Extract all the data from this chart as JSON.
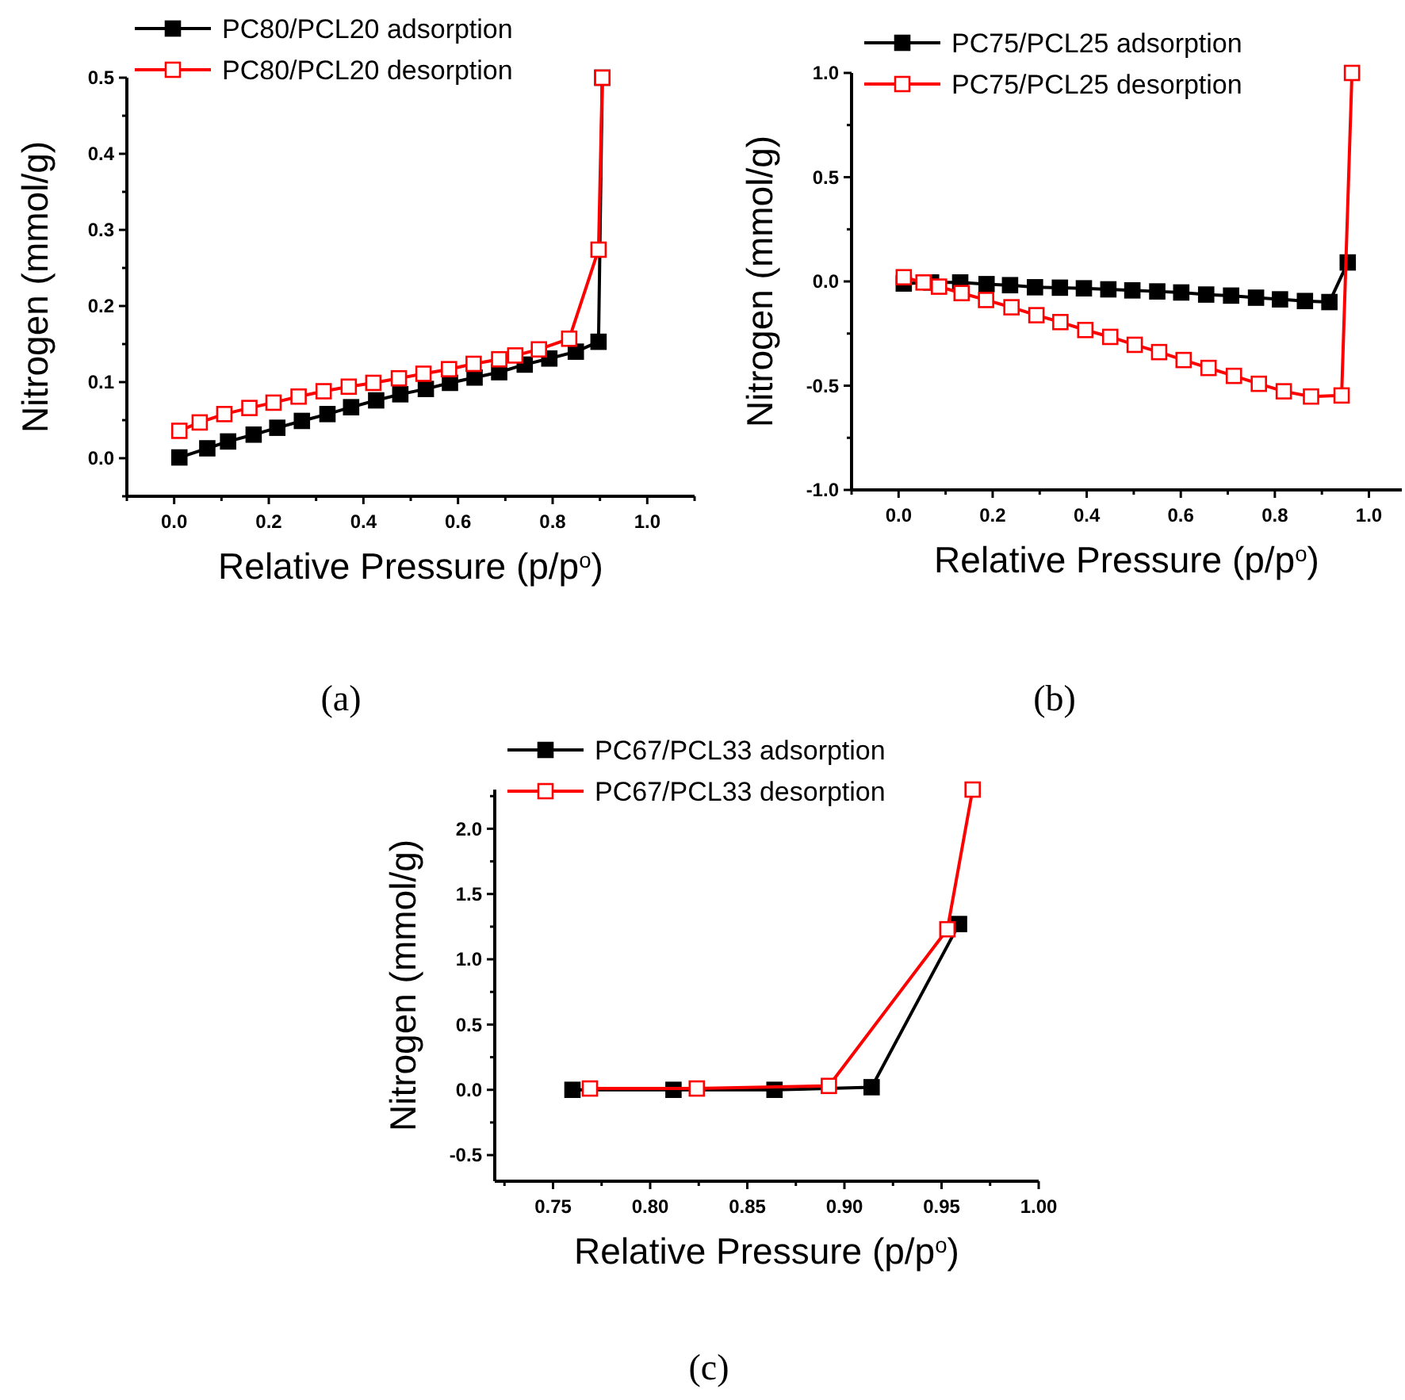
{
  "chart_data": [
    {
      "type": "line",
      "xlabel": "Relative Pressure (p/p$^{o}$)",
      "ylabel": "Nitrogen (mmol/g)",
      "annotations": [
        "(a)"
      ],
      "legend": "top",
      "marker": "square",
      "xlim": [
        -0.1,
        1.1
      ],
      "ylim": [
        -0.05,
        0.5
      ],
      "xticks": [
        {
          "value": -0.1,
          "label": null
        },
        {
          "value": 0,
          "label": "0.0"
        },
        {
          "value": 0.1,
          "label": null
        },
        0.2,
        {
          "value": 0.3,
          "label": null
        },
        0.4,
        {
          "value": 0.5,
          "label": null
        },
        0.6,
        {
          "value": 0.7,
          "label": null
        },
        0.8,
        {
          "value": 0.9,
          "label": null
        },
        {
          "value": 1,
          "label": "1.0"
        },
        {
          "value": 1.1,
          "label": null
        }
      ],
      "yticks": [
        {
          "value": -0.05,
          "label": null
        },
        {
          "value": 0,
          "label": "0.0"
        },
        {
          "value": 0.05,
          "label": null
        },
        0.1,
        {
          "value": 0.15,
          "label": null
        },
        0.2,
        {
          "value": 0.25,
          "label": null
        },
        0.3,
        {
          "value": 0.35,
          "label": null
        },
        0.4,
        {
          "value": 0.45,
          "label": null
        },
        0.5
      ],
      "series": [
        {
          "name": "PC80/PCL20 adsorption",
          "color": "#000000",
          "x": [
            0.011,
            0.07,
            0.114,
            0.168,
            0.218,
            0.27,
            0.324,
            0.374,
            0.427,
            0.478,
            0.532,
            0.583,
            0.635,
            0.687,
            0.741,
            0.793,
            0.849,
            0.897,
            0.905
          ],
          "values": [
            0.001,
            0.013,
            0.022,
            0.031,
            0.04,
            0.049,
            0.058,
            0.067,
            0.076,
            0.084,
            0.091,
            0.099,
            0.106,
            0.113,
            0.123,
            0.131,
            0.14,
            0.153,
            0.5
          ]
        },
        {
          "name": "PC80/PCL20 desorption",
          "color": "#ff0000",
          "x": [
            0.011,
            0.054,
            0.106,
            0.159,
            0.21,
            0.263,
            0.316,
            0.369,
            0.421,
            0.475,
            0.527,
            0.581,
            0.633,
            0.687,
            0.721,
            0.771,
            0.835,
            0.897,
            0.905
          ],
          "values": [
            0.036,
            0.047,
            0.058,
            0.066,
            0.073,
            0.081,
            0.088,
            0.094,
            0.099,
            0.105,
            0.111,
            0.117,
            0.124,
            0.13,
            0.135,
            0.143,
            0.157,
            0.274,
            0.5
          ]
        }
      ]
    },
    {
      "type": "line",
      "xlabel": "Relative Pressure (p/p$^{o}$)",
      "ylabel": "Nitrogen (mmol/g)",
      "annotations": [
        "(b)"
      ],
      "legend": "top",
      "marker": "square",
      "xlim": [
        -0.1,
        1.07
      ],
      "ylim": [
        -1.0,
        1.0
      ],
      "xticks": [
        {
          "value": -0.1,
          "label": null
        },
        {
          "value": 0,
          "label": "0.0"
        },
        {
          "value": 0.1,
          "label": null
        },
        0.2,
        {
          "value": 0.3,
          "label": null
        },
        0.4,
        {
          "value": 0.5,
          "label": null
        },
        0.6,
        {
          "value": 0.7,
          "label": null
        },
        0.8,
        {
          "value": 0.9,
          "label": null
        },
        {
          "value": 1,
          "label": "1.0"
        }
      ],
      "yticks": [
        {
          "value": -1,
          "label": "-1.0"
        },
        {
          "value": -0.75,
          "label": null
        },
        -0.5,
        {
          "value": -0.25,
          "label": null
        },
        {
          "value": 0,
          "label": "0.0"
        },
        {
          "value": 0.25,
          "label": null
        },
        0.5,
        {
          "value": 0.75,
          "label": null
        },
        {
          "value": 1,
          "label": "1.0"
        }
      ],
      "series": [
        {
          "name": "PC75/PCL25 adsorption",
          "color": "#000000",
          "x": [
            0.011,
            0.069,
            0.131,
            0.187,
            0.237,
            0.29,
            0.343,
            0.394,
            0.446,
            0.497,
            0.55,
            0.601,
            0.654,
            0.707,
            0.76,
            0.811,
            0.864,
            0.916,
            0.955
          ],
          "values": [
            -0.01,
            -0.005,
            -0.005,
            -0.013,
            -0.018,
            -0.028,
            -0.03,
            -0.033,
            -0.038,
            -0.043,
            -0.048,
            -0.053,
            -0.063,
            -0.068,
            -0.078,
            -0.086,
            -0.094,
            -0.099,
            0.091
          ]
        },
        {
          "name": "PC75/PCL25 desorption",
          "color": "#ff0000",
          "x": [
            0.011,
            0.053,
            0.086,
            0.134,
            0.186,
            0.24,
            0.293,
            0.344,
            0.397,
            0.45,
            0.502,
            0.554,
            0.606,
            0.659,
            0.713,
            0.766,
            0.819,
            0.877,
            0.942,
            0.964
          ],
          "values": [
            0.02,
            -0.005,
            -0.025,
            -0.056,
            -0.089,
            -0.124,
            -0.162,
            -0.195,
            -0.233,
            -0.266,
            -0.304,
            -0.339,
            -0.377,
            -0.415,
            -0.453,
            -0.491,
            -0.527,
            -0.552,
            -0.547,
            1.0
          ]
        }
      ]
    },
    {
      "type": "line",
      "xlabel": "Relative Pressure (p/p$^{o}$)",
      "ylabel": "Nitrogen (mmol/g)",
      "annotations": [
        "(c)"
      ],
      "legend": "top",
      "marker": "square",
      "xlim": [
        0.72,
        1.0
      ],
      "ylim": [
        -0.7,
        2.3
      ],
      "xticks": [
        {
          "value": 0.725,
          "label": null
        },
        {
          "value": 0.75,
          "label": "0.75"
        },
        {
          "value": 0.775,
          "label": null
        },
        {
          "value": 0.8,
          "label": "0.80"
        },
        {
          "value": 0.825,
          "label": null
        },
        {
          "value": 0.85,
          "label": "0.85"
        },
        {
          "value": 0.875,
          "label": null
        },
        {
          "value": 0.9,
          "label": "0.90"
        },
        {
          "value": 0.925,
          "label": null
        },
        {
          "value": 0.95,
          "label": "0.95"
        },
        {
          "value": 0.975,
          "label": null
        },
        {
          "value": 1.0,
          "label": "1.00"
        }
      ],
      "yticks": [
        -0.5,
        {
          "value": -0.25,
          "label": null
        },
        {
          "value": 0,
          "label": "0.0"
        },
        {
          "value": 0.25,
          "label": null
        },
        0.5,
        {
          "value": 0.75,
          "label": null
        },
        {
          "value": 1,
          "label": "1.0"
        },
        {
          "value": 1.25,
          "label": null
        },
        1.5,
        {
          "value": 1.75,
          "label": null
        },
        {
          "value": 2,
          "label": "2.0"
        },
        {
          "value": 2.25,
          "label": null
        }
      ],
      "series": [
        {
          "name": "PC67/PCL33 adsorption",
          "color": "#000000",
          "x": [
            0.76,
            0.812,
            0.864,
            0.914,
            0.959
          ],
          "values": [
            0.0,
            0.0,
            0.0,
            0.02,
            1.27
          ]
        },
        {
          "name": "PC67/PCL33 desorption",
          "color": "#ff0000",
          "x": [
            0.769,
            0.824,
            0.892,
            0.953,
            0.966
          ],
          "values": [
            0.01,
            0.01,
            0.03,
            1.23,
            2.3
          ]
        }
      ]
    }
  ]
}
